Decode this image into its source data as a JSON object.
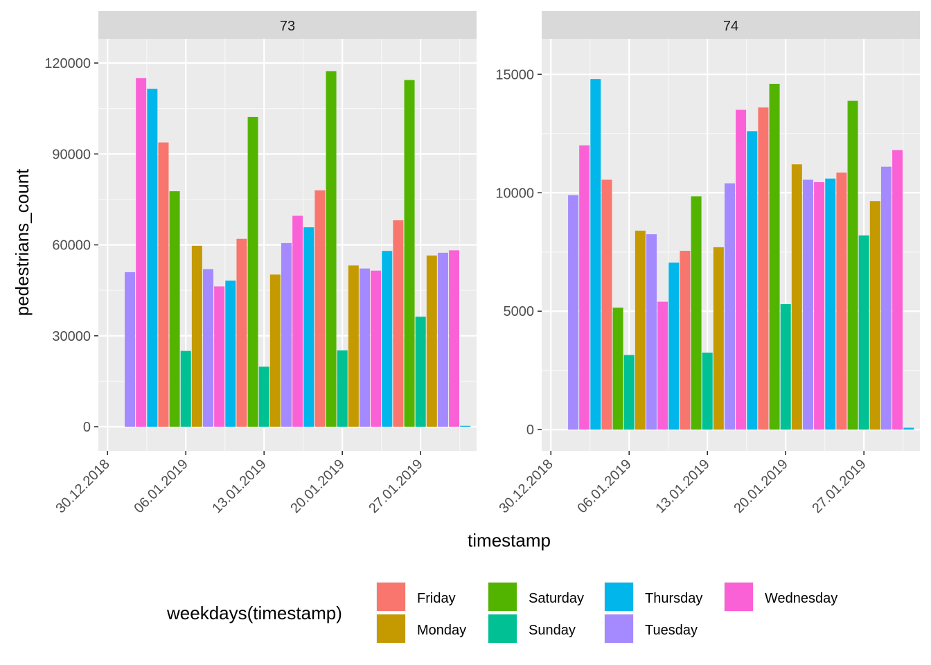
{
  "chart_data": {
    "type": "bar",
    "xlabel": "timestamp",
    "ylabel": "pedestrians_count",
    "legend_title": "weekdays(timestamp)",
    "legend_position": "bottom",
    "x_ticks": [
      "30.12.2018",
      "06.01.2019",
      "13.01.2019",
      "20.01.2019",
      "27.01.2019"
    ],
    "dates": [
      "31.12.2018",
      "01.01.2019",
      "02.01.2019",
      "03.01.2019",
      "04.01.2019",
      "05.01.2019",
      "06.01.2019",
      "07.01.2019",
      "08.01.2019",
      "09.01.2019",
      "10.01.2019",
      "11.01.2019",
      "12.01.2019",
      "13.01.2019",
      "14.01.2019",
      "15.01.2019",
      "16.01.2019",
      "17.01.2019",
      "18.01.2019",
      "19.01.2019",
      "20.01.2019",
      "21.01.2019",
      "22.01.2019",
      "23.01.2019",
      "24.01.2019",
      "25.01.2019",
      "26.01.2019",
      "27.01.2019",
      "28.01.2019",
      "29.01.2019",
      "30.01.2019",
      "31.01.2019"
    ],
    "weekdays": [
      "Monday",
      "Tuesday",
      "Wednesday",
      "Thursday",
      "Friday",
      "Saturday",
      "Sunday"
    ],
    "first_weekday_index": 0,
    "categories": [
      {
        "name": "Friday",
        "color": "#F8766D"
      },
      {
        "name": "Monday",
        "color": "#C49A00"
      },
      {
        "name": "Saturday",
        "color": "#53B400"
      },
      {
        "name": "Sunday",
        "color": "#00C094"
      },
      {
        "name": "Thursday",
        "color": "#00B6EB"
      },
      {
        "name": "Tuesday",
        "color": "#A58AFF"
      },
      {
        "name": "Wednesday",
        "color": "#FB61D7"
      }
    ],
    "panels": [
      {
        "title": "73",
        "ylim": [
          -8000,
          128000
        ],
        "y_ticks": [
          0,
          30000,
          60000,
          90000,
          120000
        ],
        "y_tick_labels": [
          "0",
          "30000",
          "60000",
          "90000",
          "120000"
        ],
        "values": [
          null,
          51000,
          115000,
          111500,
          93800,
          77700,
          25000,
          59700,
          52000,
          46300,
          48200,
          62000,
          102200,
          19800,
          50200,
          60600,
          69600,
          65800,
          78000,
          117300,
          25200,
          53200,
          52200,
          51500,
          58000,
          68100,
          114400,
          36300,
          56500,
          57400,
          58200,
          300
        ]
      },
      {
        "title": "74",
        "ylim": [
          -900,
          16500
        ],
        "y_ticks": [
          0,
          5000,
          10000,
          15000
        ],
        "y_tick_labels": [
          "0",
          "5000",
          "10000",
          "15000"
        ],
        "values": [
          null,
          9900,
          12000,
          14800,
          10550,
          5150,
          3150,
          8400,
          8250,
          5400,
          7050,
          7550,
          9850,
          3250,
          7700,
          10400,
          13500,
          12600,
          13600,
          14600,
          5300,
          11200,
          10550,
          10450,
          10600,
          10850,
          13880,
          8200,
          9650,
          11100,
          11800,
          80
        ]
      }
    ]
  }
}
